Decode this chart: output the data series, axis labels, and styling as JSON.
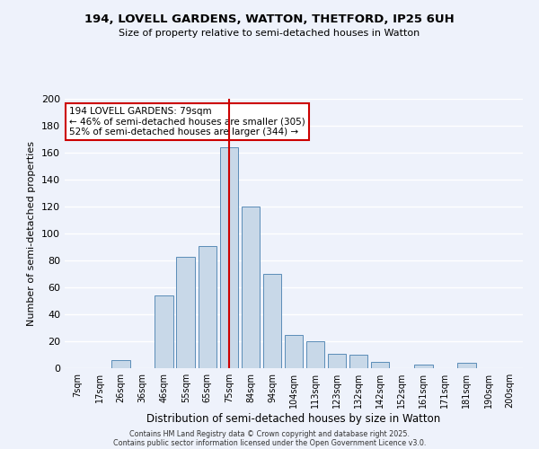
{
  "title_line1": "194, LOVELL GARDENS, WATTON, THETFORD, IP25 6UH",
  "title_line2": "Size of property relative to semi-detached houses in Watton",
  "xlabel": "Distribution of semi-detached houses by size in Watton",
  "ylabel": "Number of semi-detached properties",
  "bar_labels": [
    "7sqm",
    "17sqm",
    "26sqm",
    "36sqm",
    "46sqm",
    "55sqm",
    "65sqm",
    "75sqm",
    "84sqm",
    "94sqm",
    "104sqm",
    "113sqm",
    "123sqm",
    "132sqm",
    "142sqm",
    "152sqm",
    "161sqm",
    "171sqm",
    "181sqm",
    "190sqm",
    "200sqm"
  ],
  "bar_values": [
    0,
    0,
    6,
    0,
    54,
    83,
    91,
    164,
    120,
    70,
    25,
    20,
    11,
    10,
    5,
    0,
    3,
    0,
    4,
    0,
    0
  ],
  "bar_color": "#c8d8e8",
  "bar_edge_color": "#5b8db8",
  "annotation_title": "194 LOVELL GARDENS: 79sqm",
  "annotation_line2": "← 46% of semi-detached houses are smaller (305)",
  "annotation_line3": "52% of semi-detached houses are larger (344) →",
  "annotation_box_color": "#ffffff",
  "annotation_box_edge_color": "#cc0000",
  "vline_color": "#cc0000",
  "vline_x_index": 7,
  "ylim": [
    0,
    200
  ],
  "yticks": [
    0,
    20,
    40,
    60,
    80,
    100,
    120,
    140,
    160,
    180,
    200
  ],
  "background_color": "#eef2fb",
  "grid_color": "#ffffff",
  "footer_line1": "Contains HM Land Registry data © Crown copyright and database right 2025.",
  "footer_line2": "Contains public sector information licensed under the Open Government Licence v3.0."
}
